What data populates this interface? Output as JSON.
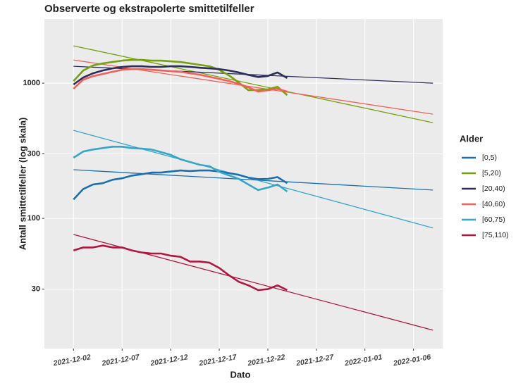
{
  "chart_data": {
    "type": "line",
    "title": "Observerte og ekstrapolerte smittetilfeller",
    "x_label": "Dato",
    "y_label": "Antall smittetilfeller (log skala)",
    "legend_title": "Alder",
    "legend": "right",
    "log_scale": "y",
    "grid": true,
    "x": [
      "2021-12-02",
      "2021-12-03",
      "2021-12-04",
      "2021-12-05",
      "2021-12-06",
      "2021-12-07",
      "2021-12-08",
      "2021-12-09",
      "2021-12-10",
      "2021-12-11",
      "2021-12-12",
      "2021-12-13",
      "2021-12-14",
      "2021-12-15",
      "2021-12-16",
      "2021-12-17",
      "2021-12-18",
      "2021-12-19",
      "2021-12-20",
      "2021-12-21",
      "2021-12-22",
      "2021-12-23",
      "2021-12-24"
    ],
    "trend_x": [
      "2021-12-02",
      "2022-01-08"
    ],
    "xlim": [
      "2021-11-29",
      "2022-01-09"
    ],
    "xticks": [
      "2021-12-02",
      "2021-12-07",
      "2021-12-12",
      "2021-12-17",
      "2021-12-22",
      "2021-12-27",
      "2022-01-01",
      "2022-01-06"
    ],
    "ylim": [
      10.9,
      2980
    ],
    "yticks": [
      30,
      100,
      300,
      1000
    ],
    "series": [
      {
        "name": "[0,5)",
        "color": "#1a6fae",
        "values": [
          138,
          165,
          178,
          182,
          193,
          198,
          207,
          212,
          218,
          218,
          222,
          226,
          224,
          226,
          226,
          222,
          216,
          210,
          200,
          195,
          196,
          202,
          182
        ],
        "trend": [
          229,
          162
        ]
      },
      {
        "name": "[5,20)",
        "color": "#77a00d",
        "values": [
          1036,
          1240,
          1350,
          1400,
          1433,
          1468,
          1485,
          1485,
          1468,
          1468,
          1450,
          1433,
          1400,
          1366,
          1333,
          1256,
          1141,
          1012,
          887,
          890,
          900,
          940,
          815
        ],
        "trend": [
          1888,
          510
        ]
      },
      {
        "name": "[20,40)",
        "color": "#2d2d5a",
        "values": [
          977,
          1100,
          1183,
          1240,
          1286,
          1318,
          1333,
          1333,
          1318,
          1318,
          1333,
          1333,
          1318,
          1300,
          1286,
          1270,
          1240,
          1200,
          1150,
          1110,
          1130,
          1200,
          1090
        ],
        "trend": [
          1333,
          1000
        ]
      },
      {
        "name": "[40,60)",
        "color": "#f2605a",
        "values": [
          908,
          1062,
          1127,
          1169,
          1212,
          1256,
          1271,
          1271,
          1256,
          1240,
          1226,
          1212,
          1183,
          1155,
          1114,
          1075,
          1036,
          989,
          931,
          866,
          887,
          908,
          866
        ],
        "trend": [
          1485,
          590
        ]
      },
      {
        "name": "[60,75)",
        "color": "#35a6c9",
        "values": [
          281,
          312,
          323,
          331,
          339,
          339,
          331,
          328,
          323,
          309,
          295,
          274,
          261,
          249,
          243,
          221,
          208,
          196,
          178,
          162,
          169,
          178,
          158
        ],
        "trend": [
          448,
          85
        ]
      },
      {
        "name": "[75,110)",
        "color": "#b1163f",
        "values": [
          58,
          61,
          61,
          63,
          61,
          61,
          58,
          56,
          55,
          55,
          53,
          52,
          48,
          48,
          47,
          43,
          38,
          34,
          32,
          29.5,
          30,
          32,
          29.5
        ],
        "trend": [
          76,
          14.9
        ]
      }
    ]
  }
}
